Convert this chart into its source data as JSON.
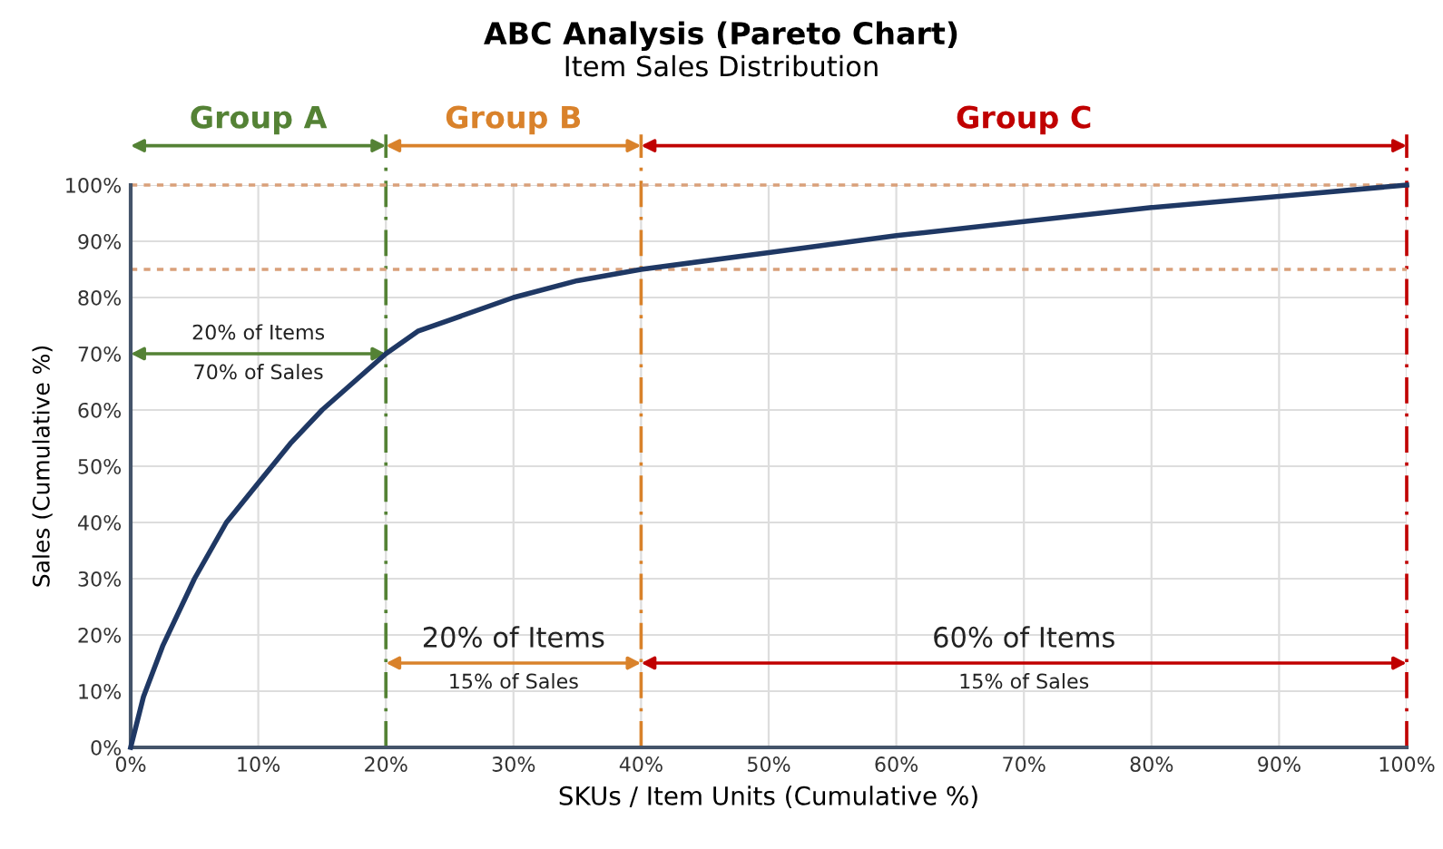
{
  "chart_data": {
    "type": "line",
    "title": "ABC Analysis (Pareto Chart)",
    "subtitle": "Item Sales Distribution",
    "xlabel": "SKUs / Item Units (Cumulative %)",
    "ylabel": "Sales (Cumulative %)",
    "series": [
      {
        "color": "#1f3864",
        "x": [
          0,
          1,
          2.5,
          5,
          7.5,
          10,
          12.5,
          15,
          17.5,
          20,
          22.5,
          25,
          30,
          35,
          40,
          50,
          60,
          70,
          80,
          90,
          100
        ],
        "values": [
          0,
          9,
          18,
          30,
          40,
          47,
          54,
          60,
          65,
          70,
          74,
          76,
          80,
          83,
          85,
          88,
          91,
          93.5,
          96,
          98,
          100
        ]
      }
    ],
    "xlim": [
      0,
      100
    ],
    "ylim": [
      0,
      100
    ],
    "xticks": [
      {
        "value": 0,
        "label": "0%"
      },
      {
        "value": 10,
        "label": "10%"
      },
      {
        "value": 20,
        "label": "20%"
      },
      {
        "value": 30,
        "label": "30%"
      },
      {
        "value": 40,
        "label": "40%"
      },
      {
        "value": 50,
        "label": "50%"
      },
      {
        "value": 60,
        "label": "60%"
      },
      {
        "value": 70,
        "label": "70%"
      },
      {
        "value": 80,
        "label": "80%"
      },
      {
        "value": 90,
        "label": "90%"
      },
      {
        "value": 100,
        "label": "100%"
      }
    ],
    "yticks": [
      {
        "value": 0,
        "label": "0%"
      },
      {
        "value": 10,
        "label": "10%"
      },
      {
        "value": 20,
        "label": "20%"
      },
      {
        "value": 30,
        "label": "30%"
      },
      {
        "value": 40,
        "label": "40%"
      },
      {
        "value": 50,
        "label": "50%"
      },
      {
        "value": 60,
        "label": "60%"
      },
      {
        "value": 70,
        "label": "70%"
      },
      {
        "value": 80,
        "label": "80%"
      },
      {
        "value": 90,
        "label": "90%"
      },
      {
        "value": 100,
        "label": "100%"
      }
    ],
    "grid": true,
    "marker": "none",
    "line_style": "solid",
    "ref_lines": [
      {
        "axis": "x",
        "value": 20,
        "color": "#548235",
        "line_style": "dashed"
      },
      {
        "axis": "x",
        "value": 40,
        "color": "#d9822b",
        "line_style": "dashed"
      },
      {
        "axis": "x",
        "value": 100,
        "color": "#c00000",
        "line_style": "dashed"
      },
      {
        "axis": "y",
        "value": 100,
        "color": "#d9a07a",
        "line_style": "dotted"
      },
      {
        "axis": "y",
        "value": 85,
        "color": "#d9a07a",
        "line_style": "dotted"
      }
    ],
    "annotations": [
      "Group A",
      "Group B",
      "Group C",
      "20% of Items",
      "70% of Sales",
      "20% of Items",
      "15% of Sales",
      "60% of Items",
      "15% of Sales"
    ]
  }
}
